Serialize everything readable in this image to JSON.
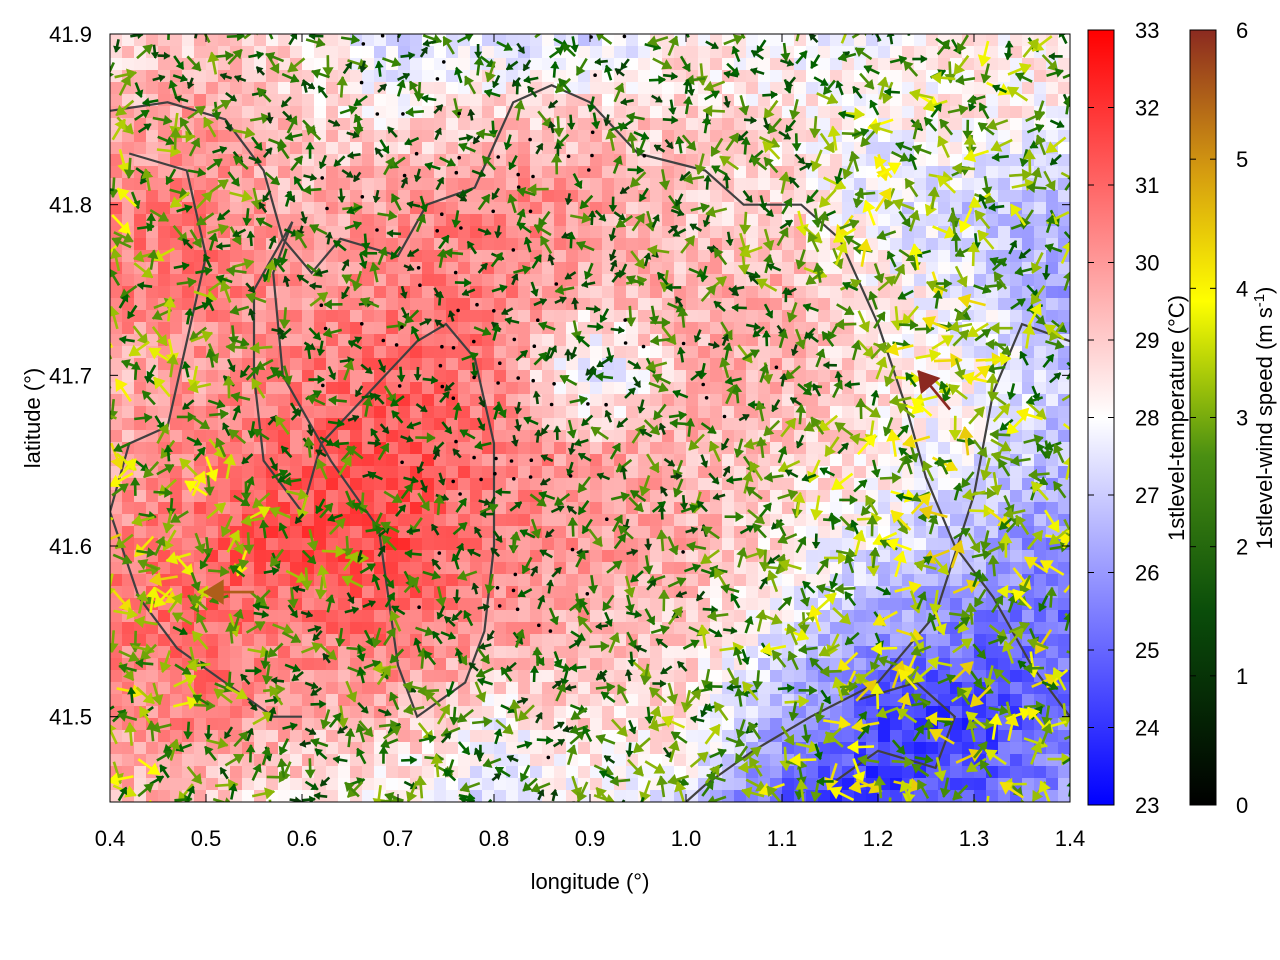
{
  "chart_data": {
    "type": "heatmap",
    "title": "",
    "xlabel": "longitude (°)",
    "ylabel": "latitude (°)",
    "xlim": [
      0.4,
      1.4
    ],
    "ylim": [
      41.45,
      41.9
    ],
    "x_ticks": [
      0.4,
      0.5,
      0.6,
      0.7,
      0.8,
      0.9,
      1.0,
      1.1,
      1.2,
      1.3,
      1.4
    ],
    "x_tick_labels": [
      "0.4",
      "0.5",
      "0.6",
      "0.7",
      "0.8",
      "0.9",
      "1.0",
      "1.1",
      "1.2",
      "1.3",
      "1.4"
    ],
    "y_ticks": [
      41.5,
      41.6,
      41.7,
      41.8,
      41.9
    ],
    "y_tick_labels": [
      "41.5",
      "41.6",
      "41.7",
      "41.8",
      "41.9"
    ],
    "colorbars": [
      {
        "name": "temperature",
        "label": "1stlevel-temperature (°C)",
        "range": [
          23,
          33
        ],
        "ticks": [
          23,
          24,
          25,
          26,
          27,
          28,
          29,
          30,
          31,
          32,
          33
        ],
        "tick_labels": [
          "23",
          "24",
          "25",
          "26",
          "27",
          "28",
          "29",
          "30",
          "31",
          "32",
          "33"
        ],
        "colors": [
          "#0000ff",
          "#ffffff",
          "#ff0000"
        ]
      },
      {
        "name": "wind_speed",
        "label_main": "1stlevel-wind speed (m s",
        "label_sup": "-1",
        "label_end": ")",
        "range": [
          0,
          6
        ],
        "ticks": [
          0,
          1,
          2,
          3,
          4,
          5,
          6
        ],
        "tick_labels": [
          "0",
          "1",
          "2",
          "3",
          "4",
          "5",
          "6"
        ],
        "colors": [
          "#000000",
          "#006400",
          "#7fb800",
          "#ffff00",
          "#cc8800",
          "#8b2020"
        ]
      }
    ],
    "temperature_field": {
      "grid_note": "approximate estimated temperature field (°C) sampled on a coarse lon/lat grid",
      "lon": [
        0.4,
        0.5,
        0.6,
        0.7,
        0.8,
        0.9,
        1.0,
        1.1,
        1.2,
        1.3,
        1.4
      ],
      "lat": [
        41.9,
        41.85,
        41.8,
        41.75,
        41.7,
        41.65,
        41.6,
        41.55,
        41.5,
        41.45
      ],
      "values": [
        [
          28.5,
          29.0,
          28.5,
          27.0,
          27.5,
          27.0,
          28.5,
          28.0,
          28.0,
          28.5,
          28.5
        ],
        [
          29.5,
          30.0,
          29.0,
          28.5,
          29.0,
          29.0,
          29.0,
          28.5,
          28.0,
          28.5,
          28.0
        ],
        [
          30.5,
          30.5,
          29.5,
          30.0,
          30.5,
          30.0,
          29.0,
          29.0,
          27.5,
          27.0,
          26.5
        ],
        [
          30.5,
          30.5,
          30.0,
          30.5,
          30.5,
          29.5,
          29.5,
          29.5,
          28.5,
          27.5,
          26.0
        ],
        [
          29.5,
          30.0,
          30.5,
          31.0,
          30.5,
          27.0,
          29.5,
          29.5,
          28.5,
          28.0,
          27.0
        ],
        [
          29.5,
          30.5,
          31.0,
          31.5,
          30.5,
          30.0,
          29.5,
          29.0,
          28.5,
          27.5,
          26.5
        ],
        [
          30.5,
          31.0,
          31.5,
          31.5,
          30.5,
          30.0,
          29.5,
          28.5,
          27.5,
          26.5,
          25.5
        ],
        [
          30.5,
          31.0,
          30.5,
          31.0,
          30.0,
          29.5,
          29.0,
          27.5,
          26.0,
          25.5,
          25.0
        ],
        [
          30.0,
          30.5,
          29.5,
          29.5,
          28.0,
          29.0,
          28.5,
          26.5,
          24.5,
          24.0,
          25.5
        ],
        [
          29.5,
          29.0,
          28.5,
          28.0,
          27.5,
          28.0,
          27.5,
          24.5,
          24.0,
          25.0,
          26.0
        ]
      ]
    },
    "wind_field": {
      "grid_note": "approximate estimated first-level wind speed (m s-1); direction is locally variable",
      "lon": [
        0.4,
        0.5,
        0.6,
        0.7,
        0.8,
        0.9,
        1.0,
        1.1,
        1.2,
        1.3,
        1.4
      ],
      "lat": [
        41.9,
        41.8,
        41.7,
        41.6,
        41.5
      ],
      "speed": [
        [
          2.5,
          2.0,
          2.0,
          1.5,
          2.0,
          1.5,
          2.0,
          2.0,
          2.5,
          3.0,
          2.5
        ],
        [
          3.0,
          2.5,
          2.0,
          1.5,
          1.5,
          2.0,
          2.0,
          2.5,
          3.5,
          3.0,
          2.5
        ],
        [
          3.0,
          2.5,
          2.0,
          1.5,
          1.0,
          1.5,
          2.0,
          2.0,
          3.0,
          3.5,
          2.5
        ],
        [
          3.5,
          3.5,
          2.5,
          2.0,
          1.5,
          2.0,
          2.0,
          2.5,
          3.0,
          3.5,
          3.5
        ],
        [
          3.0,
          2.5,
          2.0,
          2.5,
          2.0,
          2.0,
          2.5,
          3.0,
          3.5,
          3.5,
          3.0
        ]
      ],
      "notable_vectors": [
        {
          "lon": 0.55,
          "lat": 41.573,
          "speed": 5.5,
          "direction": "west"
        },
        {
          "lon": 1.275,
          "lat": 41.68,
          "speed": 6.0,
          "direction": "north-west"
        }
      ]
    },
    "contours": [
      {
        "name": "outer",
        "lonlat": [
          [
            0.4,
            41.855
          ],
          [
            0.46,
            41.86
          ],
          [
            0.52,
            41.85
          ],
          [
            0.56,
            41.82
          ],
          [
            0.58,
            41.78
          ],
          [
            0.61,
            41.76
          ],
          [
            0.64,
            41.78
          ],
          [
            0.7,
            41.77
          ],
          [
            0.73,
            41.8
          ],
          [
            0.78,
            41.81
          ],
          [
            0.82,
            41.86
          ],
          [
            0.86,
            41.87
          ],
          [
            0.9,
            41.86
          ],
          [
            0.95,
            41.83
          ],
          [
            1.02,
            41.82
          ],
          [
            1.06,
            41.8
          ],
          [
            1.12,
            41.8
          ],
          [
            1.16,
            41.78
          ],
          [
            1.2,
            41.73
          ],
          [
            1.23,
            41.68
          ],
          [
            1.25,
            41.64
          ],
          [
            1.28,
            41.6
          ],
          [
            1.32,
            41.57
          ],
          [
            1.36,
            41.53
          ],
          [
            1.4,
            41.5
          ]
        ]
      },
      {
        "name": "inner_loop",
        "lonlat": [
          [
            0.59,
            41.79
          ],
          [
            0.55,
            41.75
          ],
          [
            0.55,
            41.7
          ],
          [
            0.56,
            41.65
          ],
          [
            0.6,
            41.62
          ],
          [
            0.62,
            41.66
          ],
          [
            0.67,
            41.69
          ],
          [
            0.72,
            41.72
          ],
          [
            0.75,
            41.73
          ],
          [
            0.78,
            41.71
          ],
          [
            0.8,
            41.66
          ],
          [
            0.8,
            41.6
          ],
          [
            0.79,
            41.55
          ],
          [
            0.77,
            41.52
          ],
          [
            0.72,
            41.5
          ],
          [
            0.7,
            41.53
          ],
          [
            0.69,
            41.57
          ],
          [
            0.68,
            41.61
          ],
          [
            0.63,
            41.65
          ],
          [
            0.58,
            41.7
          ],
          [
            0.57,
            41.76
          ],
          [
            0.59,
            41.79
          ]
        ]
      },
      {
        "name": "west_loop",
        "lonlat": [
          [
            0.42,
            41.83
          ],
          [
            0.48,
            41.82
          ],
          [
            0.5,
            41.77
          ],
          [
            0.48,
            41.72
          ],
          [
            0.46,
            41.67
          ],
          [
            0.42,
            41.66
          ],
          [
            0.4,
            41.62
          ],
          [
            0.43,
            41.57
          ],
          [
            0.47,
            41.54
          ],
          [
            0.52,
            41.52
          ],
          [
            0.57,
            41.5
          ],
          [
            0.6,
            41.5
          ]
        ]
      },
      {
        "name": "east_loop",
        "lonlat": [
          [
            1.4,
            41.72
          ],
          [
            1.35,
            41.73
          ],
          [
            1.32,
            41.69
          ],
          [
            1.3,
            41.63
          ],
          [
            1.26,
            41.56
          ],
          [
            1.2,
            41.52
          ],
          [
            1.13,
            41.5
          ],
          [
            1.07,
            41.48
          ],
          [
            1.02,
            41.46
          ],
          [
            1.0,
            41.45
          ]
        ]
      },
      {
        "name": "south_pocket",
        "lonlat": [
          [
            1.15,
            41.46
          ],
          [
            1.2,
            41.48
          ],
          [
            1.26,
            41.47
          ],
          [
            1.28,
            41.5
          ],
          [
            1.24,
            41.52
          ],
          [
            1.18,
            41.51
          ]
        ]
      }
    ]
  }
}
